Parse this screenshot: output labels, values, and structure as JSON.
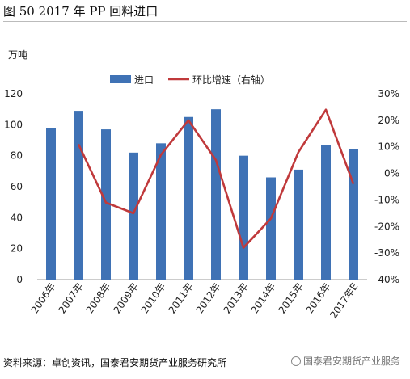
{
  "header": {
    "title": "图 50   2017 年 PP 回料进口"
  },
  "footer": {
    "source": "资料来源：卓创资讯，国泰君安期货产业服务研究所",
    "watermark": "国泰君安期货产业服务"
  },
  "chart_data": {
    "type": "bar+line",
    "title": "",
    "ylabel_left": "万吨",
    "categories": [
      "2006年",
      "2007年",
      "2008年",
      "2009年",
      "2010年",
      "2011年",
      "2012年",
      "2013年",
      "2014年",
      "2015年",
      "2016年",
      "2017年E"
    ],
    "series": [
      {
        "name": "进口",
        "type": "bar",
        "axis": "left",
        "color": "#3f72b5",
        "values": [
          98,
          109,
          97,
          82,
          88,
          105,
          110,
          80,
          66,
          71,
          87,
          84
        ]
      },
      {
        "name": "环比增速（右轴）",
        "type": "line",
        "axis": "right",
        "color": "#c0393b",
        "values": [
          null,
          11,
          -11,
          -15,
          7,
          20,
          5,
          -28,
          -17,
          8,
          24,
          -4
        ]
      }
    ],
    "ylim_left": [
      0,
      120
    ],
    "yticks_left": [
      "0",
      "20",
      "40",
      "60",
      "80",
      "100",
      "120"
    ],
    "ylim_right": [
      -40,
      30
    ],
    "yticks_right": [
      "-40%",
      "-30%",
      "-20%",
      "-10%",
      "0%",
      "10%",
      "20%",
      "30%"
    ],
    "legend_position": "top",
    "grid": false
  }
}
